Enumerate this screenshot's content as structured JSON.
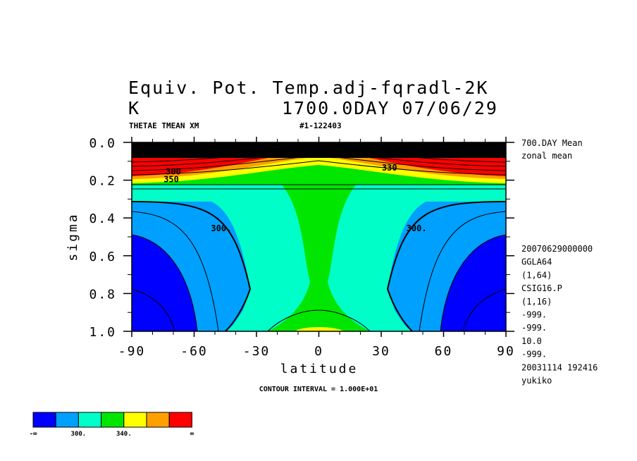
{
  "header": {
    "title_line1": "Equiv. Pot. Temp.adj-fqradl-2K",
    "title_line2_left": "K",
    "title_line2_right": "1700.0DAY 07/06/29",
    "var_label": "THETAE TMEAN XM",
    "run_id": "#1-122403"
  },
  "right_info": {
    "top_lines": [
      "700.DAY Mean",
      "zonal mean"
    ],
    "meta_lines": [
      "20070629000000",
      "GGLA64",
      "(1,64)",
      "CSIG16.P",
      "(1,16)",
      "-999.",
      "-999.",
      "10.0",
      "-999.",
      "20031114 192416",
      "yukiko"
    ]
  },
  "footer": {
    "contour_interval": "CONTOUR INTERVAL = 1.000E+01"
  },
  "colorbar": {
    "colors": [
      "#0000ff",
      "#00a0ff",
      "#00ffc8",
      "#00e600",
      "#ffff00",
      "#ffa000",
      "#ff0000"
    ],
    "labels": [
      "-∞",
      "300.",
      "340.",
      "∞"
    ]
  },
  "chart_data": {
    "type": "heatmap",
    "subtype": "filled-contour",
    "xlabel": "latitude",
    "ylabel": "sigma",
    "xlim": [
      -90,
      90
    ],
    "ylim": [
      1.0,
      0.0
    ],
    "x_ticks": [
      -90,
      -60,
      -30,
      0,
      30,
      60,
      90
    ],
    "x_tick_labels": [
      "-90",
      "-60",
      "-30",
      "0",
      "30",
      "60",
      "90"
    ],
    "y_ticks": [
      0.0,
      0.2,
      0.4,
      0.6,
      0.8,
      1.0
    ],
    "y_tick_labels": [
      "0.0",
      "0.2",
      "0.4",
      "0.6",
      "0.8",
      "1.0"
    ],
    "contour_interval": 10,
    "contour_labels": [
      {
        "text": "300.",
        "lat": -47,
        "sigma": 0.47
      },
      {
        "text": "300.",
        "lat": 47,
        "sigma": 0.47
      },
      {
        "text": "330",
        "lat": 34,
        "sigma": 0.15
      },
      {
        "text": "300",
        "lat": -70,
        "sigma": 0.17
      },
      {
        "text": "350",
        "lat": -71,
        "sigma": 0.21
      }
    ]
  }
}
